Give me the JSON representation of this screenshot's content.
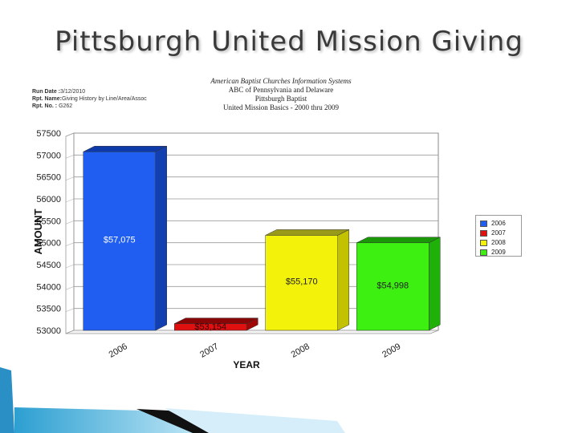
{
  "slide": {
    "title": "Pittsburgh United Mission Giving"
  },
  "report": {
    "run_date_label": "Run Date :",
    "run_date": "3/12/2010",
    "rpt_name_label": "Rpt. Name:",
    "rpt_name": "Giving History by Line/Area/Assoc",
    "rpt_no_label": "Rpt. No. :",
    "rpt_no": "G262",
    "org": "American Baptist Churches Information Systems",
    "region": "ABC of Pennsylvania and Delaware",
    "association": "Pittsburgh Baptist",
    "subtitle": "United Mission Basics - 2000 thru 2009"
  },
  "chart_data": {
    "type": "bar",
    "categories": [
      "2006",
      "2007",
      "2008",
      "2009"
    ],
    "values": [
      57075,
      53154,
      55170,
      54998
    ],
    "data_labels": [
      "$57,075",
      "$53,154",
      "$55,170",
      "$54,998"
    ],
    "xlabel": "YEAR",
    "ylabel": "AMOUNT",
    "ylim": [
      53000,
      57500
    ],
    "yticks": [
      "53000",
      "53500",
      "54000",
      "54500",
      "55000",
      "55500",
      "56000",
      "56500",
      "57000",
      "57500"
    ],
    "grid": true,
    "legend_position": "right",
    "legend": [
      "2006",
      "2007",
      "2008",
      "2009"
    ],
    "colors": [
      "#1f5ef0",
      "#e01010",
      "#f2f20a",
      "#3ef011"
    ],
    "side_colors": [
      "#1240b0",
      "#a00808",
      "#c2c200",
      "#20b00a"
    ],
    "top_colors": [
      "#0d3aa8",
      "#8a0606",
      "#9a9a1a",
      "#1a9808"
    ],
    "label_colors": [
      "#ffffff",
      "#330000",
      "#222222",
      "#222222"
    ]
  }
}
